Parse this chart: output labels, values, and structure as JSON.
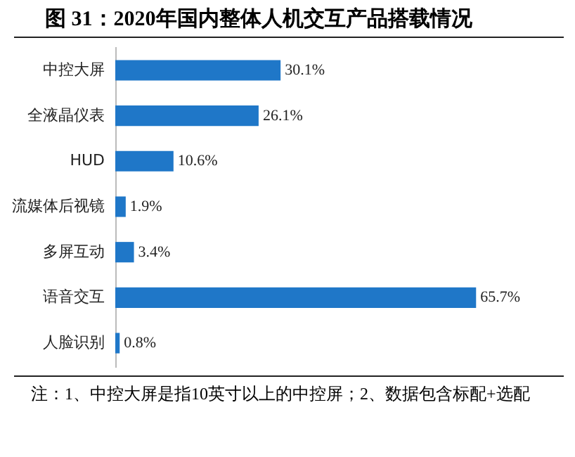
{
  "chart_data": {
    "type": "bar",
    "orientation": "horizontal",
    "title": "图 31：2020年国内整体人机交互产品搭载情况",
    "categories": [
      "中控大屏",
      "全液晶仪表",
      "HUD",
      "流媒体后视镜",
      "多屏互动",
      "语音交互",
      "人脸识别"
    ],
    "values": [
      30.1,
      26.1,
      10.6,
      1.9,
      3.4,
      65.7,
      0.8
    ],
    "value_labels": [
      "30.1%",
      "26.1%",
      "10.6%",
      "1.9%",
      "3.4%",
      "65.7%",
      "0.8%"
    ],
    "color": "#1f77c8",
    "tick_labels": "y",
    "annotations": [
      "注：1、中控大屏是指10英寸以上的中控屏；2、数据包含标配+选配"
    ]
  }
}
